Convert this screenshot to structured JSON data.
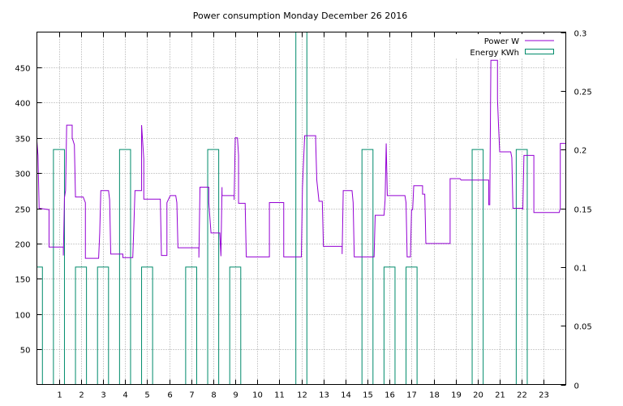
{
  "chart_data": {
    "type": "line",
    "title": "Power consumption Monday December 26 2016",
    "xlabel": "",
    "ylabel": "",
    "y2label": "",
    "xlim": [
      0,
      24
    ],
    "ylim": [
      0,
      500
    ],
    "y2lim": [
      0,
      0.3
    ],
    "grid": true,
    "legend_position": "top-right",
    "x_ticks": [
      1,
      2,
      3,
      4,
      5,
      6,
      7,
      8,
      9,
      10,
      11,
      12,
      13,
      14,
      15,
      16,
      17,
      18,
      19,
      20,
      21,
      22,
      23
    ],
    "y_ticks": [
      50,
      100,
      150,
      200,
      250,
      300,
      350,
      400,
      450
    ],
    "y2_ticks": [
      0,
      0.05,
      0.1,
      0.15,
      0.2,
      0.25,
      0.3
    ],
    "y2_tick_labels": [
      "0",
      "0.05",
      "0.1",
      "0.15",
      "0.2",
      "0.25",
      "0.3"
    ],
    "series": [
      {
        "name": "Power W",
        "axis": "y",
        "style": "line",
        "color": "#9400d3",
        "points": [
          [
            0.0,
            345
          ],
          [
            0.05,
            325
          ],
          [
            0.1,
            250
          ],
          [
            0.55,
            248
          ],
          [
            0.55,
            195
          ],
          [
            1.2,
            195
          ],
          [
            1.2,
            183
          ],
          [
            1.25,
            265
          ],
          [
            1.3,
            275
          ],
          [
            1.35,
            368
          ],
          [
            1.6,
            368
          ],
          [
            1.6,
            350
          ],
          [
            1.7,
            340
          ],
          [
            1.75,
            266
          ],
          [
            2.1,
            266
          ],
          [
            2.2,
            258
          ],
          [
            2.2,
            179
          ],
          [
            2.8,
            179
          ],
          [
            2.85,
            215
          ],
          [
            2.9,
            275
          ],
          [
            3.25,
            275
          ],
          [
            3.3,
            262
          ],
          [
            3.35,
            185
          ],
          [
            3.9,
            185
          ],
          [
            3.9,
            180
          ],
          [
            4.35,
            180
          ],
          [
            4.4,
            225
          ],
          [
            4.45,
            275
          ],
          [
            4.75,
            275
          ],
          [
            4.75,
            368
          ],
          [
            4.85,
            320
          ],
          [
            4.85,
            263
          ],
          [
            5.6,
            263
          ],
          [
            5.65,
            183
          ],
          [
            5.9,
            183
          ],
          [
            5.9,
            258
          ],
          [
            6.05,
            268
          ],
          [
            6.3,
            268
          ],
          [
            6.35,
            258
          ],
          [
            6.4,
            194
          ],
          [
            7.35,
            194
          ],
          [
            7.35,
            180
          ],
          [
            7.4,
            280
          ],
          [
            7.8,
            280
          ],
          [
            7.8,
            258
          ],
          [
            7.9,
            215
          ],
          [
            8.3,
            215
          ],
          [
            8.35,
            182
          ],
          [
            8.4,
            280
          ],
          [
            8.4,
            268
          ],
          [
            8.95,
            268
          ],
          [
            8.95,
            262
          ],
          [
            9.0,
            350
          ],
          [
            9.1,
            350
          ],
          [
            9.15,
            325
          ],
          [
            9.15,
            257
          ],
          [
            9.45,
            257
          ],
          [
            9.5,
            181
          ],
          [
            10.55,
            181
          ],
          [
            10.55,
            258
          ],
          [
            11.2,
            258
          ],
          [
            11.2,
            181
          ],
          [
            12.0,
            181
          ],
          [
            12.0,
            183
          ],
          [
            12.05,
            280
          ],
          [
            12.15,
            353
          ],
          [
            12.65,
            353
          ],
          [
            12.65,
            345
          ],
          [
            12.7,
            290
          ],
          [
            12.8,
            260
          ],
          [
            12.95,
            260
          ],
          [
            13.0,
            196
          ],
          [
            13.85,
            196
          ],
          [
            13.85,
            185
          ],
          [
            13.9,
            275
          ],
          [
            14.3,
            275
          ],
          [
            14.35,
            258
          ],
          [
            14.4,
            181
          ],
          [
            15.3,
            181
          ],
          [
            15.35,
            240
          ],
          [
            15.75,
            240
          ],
          [
            15.8,
            262
          ],
          [
            15.85,
            342
          ],
          [
            15.9,
            268
          ],
          [
            16.7,
            268
          ],
          [
            16.75,
            258
          ],
          [
            16.8,
            181
          ],
          [
            16.95,
            181
          ],
          [
            17.0,
            248
          ],
          [
            17.05,
            248
          ],
          [
            17.1,
            282
          ],
          [
            17.5,
            282
          ],
          [
            17.5,
            270
          ],
          [
            17.6,
            270
          ],
          [
            17.65,
            200
          ],
          [
            18.75,
            200
          ],
          [
            18.75,
            292
          ],
          [
            19.2,
            292
          ],
          [
            19.25,
            290
          ],
          [
            20.5,
            290
          ],
          [
            20.5,
            255
          ],
          [
            20.55,
            255
          ],
          [
            20.6,
            460
          ],
          [
            20.9,
            460
          ],
          [
            20.9,
            405
          ],
          [
            20.95,
            365
          ],
          [
            21.0,
            330
          ],
          [
            21.5,
            330
          ],
          [
            21.55,
            322
          ],
          [
            21.6,
            250
          ],
          [
            22.05,
            250
          ],
          [
            22.05,
            248
          ],
          [
            22.1,
            325
          ],
          [
            22.55,
            325
          ],
          [
            22.55,
            244
          ],
          [
            23.7,
            244
          ],
          [
            23.75,
            250
          ],
          [
            23.75,
            342
          ],
          [
            24.0,
            342
          ]
        ]
      },
      {
        "name": "Energy KWh",
        "axis": "y2",
        "style": "steps",
        "color": "#008b6b",
        "intervals": [
          [
            0.0,
            0.25,
            0.1
          ],
          [
            0.75,
            1.25,
            0.2
          ],
          [
            1.75,
            2.25,
            0.1
          ],
          [
            2.75,
            3.25,
            0.1
          ],
          [
            3.75,
            4.25,
            0.2
          ],
          [
            4.75,
            5.25,
            0.1
          ],
          [
            6.75,
            7.25,
            0.1
          ],
          [
            7.75,
            8.25,
            0.2
          ],
          [
            8.75,
            9.25,
            0.1
          ],
          [
            11.75,
            12.25,
            0.3
          ],
          [
            14.75,
            15.25,
            0.2
          ],
          [
            15.75,
            16.25,
            0.1
          ],
          [
            16.75,
            17.25,
            0.1
          ],
          [
            19.75,
            20.25,
            0.2
          ],
          [
            21.75,
            22.25,
            0.2
          ]
        ]
      }
    ]
  }
}
